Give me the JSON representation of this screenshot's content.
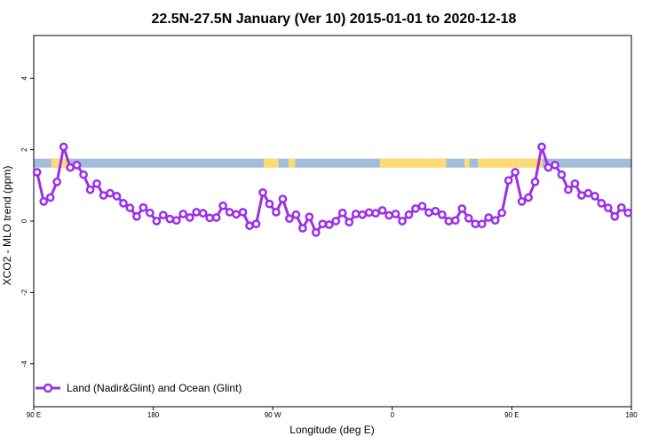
{
  "chart_data": {
    "type": "line",
    "title": "22.5N-27.5N January (Ver 10)   2015-01-01 to 2020-12-18",
    "xlabel": "Longitude (deg E)",
    "ylabel": "XCO2 - MLO trend (ppm)",
    "xlim": [
      90,
      450
    ],
    "ylim": [
      -5.2,
      5.2
    ],
    "x_ticks": [
      {
        "value": 90,
        "label": "90 E"
      },
      {
        "value": 162,
        "label": "180"
      },
      {
        "value": 234,
        "label": "90 W"
      },
      {
        "value": 306,
        "label": "0"
      },
      {
        "value": 378,
        "label": "90 E"
      },
      {
        "value": 450,
        "label": "180"
      }
    ],
    "y_ticks": [
      {
        "value": -4,
        "label": "-4"
      },
      {
        "value": -2,
        "label": "-2"
      },
      {
        "value": 0,
        "label": "0"
      },
      {
        "value": 2,
        "label": "2"
      },
      {
        "value": 4,
        "label": "4"
      }
    ],
    "land_ocean_band": {
      "y_range": [
        1.5,
        1.75
      ],
      "ocean_color": "#a3bcdc",
      "land_color": "#ffdb75",
      "land_segments": [
        [
          100.5,
          110.5
        ],
        [
          228.5,
          237.5
        ],
        [
          243.5,
          247.5
        ],
        [
          298.5,
          338.5
        ],
        [
          349.5,
          352.5
        ],
        [
          357.5,
          396.5
        ]
      ]
    },
    "series": [
      {
        "name": "Land (Nadir&Glint) and Ocean (Glint)",
        "color": "#9b30e8",
        "x": [
          92,
          96,
          100,
          104,
          108,
          112,
          116,
          120,
          124,
          128,
          132,
          136,
          140,
          144,
          148,
          152,
          156,
          160,
          164,
          168,
          172,
          176,
          180,
          184,
          188,
          192,
          196,
          200,
          204,
          208,
          212,
          216,
          220,
          224,
          228,
          232,
          236,
          240,
          244,
          248,
          252,
          256,
          260,
          264,
          268,
          272,
          276,
          280,
          284,
          288,
          292,
          296,
          300,
          304,
          308,
          312,
          316,
          320,
          324,
          328,
          332,
          336,
          340,
          344,
          348,
          352,
          356,
          360,
          364,
          368,
          372,
          376,
          380,
          384,
          388,
          392,
          396,
          400,
          404,
          408,
          412,
          416,
          420,
          424,
          428,
          432,
          436,
          440,
          444,
          448
        ],
        "y": [
          1.37,
          0.55,
          0.66,
          1.1,
          2.08,
          1.5,
          1.57,
          1.3,
          0.88,
          1.05,
          0.72,
          0.78,
          0.7,
          0.5,
          0.37,
          0.13,
          0.38,
          0.23,
          0.0,
          0.17,
          0.06,
          0.02,
          0.2,
          0.1,
          0.25,
          0.22,
          0.09,
          0.1,
          0.43,
          0.25,
          0.19,
          0.25,
          -0.13,
          -0.08,
          0.8,
          0.48,
          0.25,
          0.62,
          0.07,
          0.18,
          -0.2,
          0.12,
          -0.32,
          -0.08,
          -0.1,
          0.0,
          0.23,
          -0.03,
          0.2,
          0.18,
          0.24,
          0.22,
          0.3,
          0.16,
          0.2,
          0.0,
          0.18,
          0.35,
          0.42,
          0.24,
          0.28,
          0.18,
          0.0,
          0.02,
          0.35,
          0.08,
          -0.08,
          -0.08,
          0.1,
          0.02,
          0.23,
          1.14,
          1.37,
          0.55,
          0.66,
          1.1,
          2.08,
          1.5,
          1.57,
          1.3,
          0.88,
          1.05,
          0.72,
          0.78,
          0.7,
          0.5,
          0.37,
          0.13,
          0.38,
          0.23
        ]
      }
    ],
    "legend": {
      "position": "bottom-left"
    },
    "grid": false
  }
}
